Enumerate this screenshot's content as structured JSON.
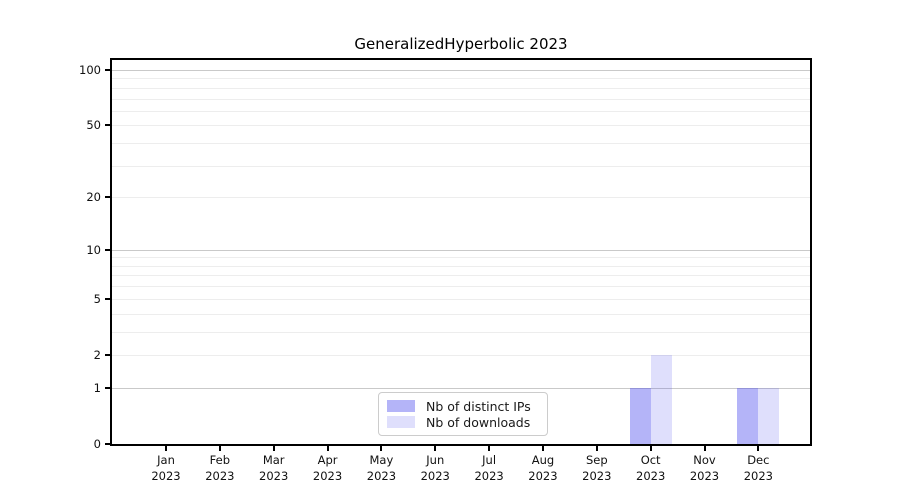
{
  "chart_data": {
    "type": "bar",
    "title": "GeneralizedHyperbolic 2023",
    "year_label": "2023",
    "categories": [
      "Jan",
      "Feb",
      "Mar",
      "Apr",
      "May",
      "Jun",
      "Jul",
      "Aug",
      "Sep",
      "Oct",
      "Nov",
      "Dec"
    ],
    "series": [
      {
        "name": "Nb of distinct IPs",
        "color": "rgba(68,68,238,0.40)",
        "values": [
          0,
          0,
          0,
          0,
          0,
          0,
          0,
          0,
          0,
          1,
          0,
          1
        ]
      },
      {
        "name": "Nb of downloads",
        "color": "rgba(68,68,238,0.17)",
        "values": [
          0,
          0,
          0,
          0,
          0,
          0,
          0,
          0,
          0,
          2,
          0,
          1
        ]
      }
    ],
    "xlabel": "",
    "ylabel": "",
    "yscale": "log1p",
    "yticks": [
      0,
      1,
      2,
      5,
      10,
      20,
      50,
      100
    ],
    "ylim": [
      0,
      113
    ],
    "grid": {
      "on": true,
      "major_values": [
        1,
        10,
        100
      ],
      "minor_values": [
        2,
        3,
        4,
        5,
        6,
        7,
        8,
        9,
        20,
        30,
        40,
        50,
        60,
        70,
        80,
        90
      ],
      "major_color": "#c9c9c9",
      "minor_color": "#ededed"
    },
    "legend": {
      "position": "lower center",
      "border_color": "#cccccc"
    },
    "axis_color": "#000000",
    "text_color": "#111111"
  }
}
